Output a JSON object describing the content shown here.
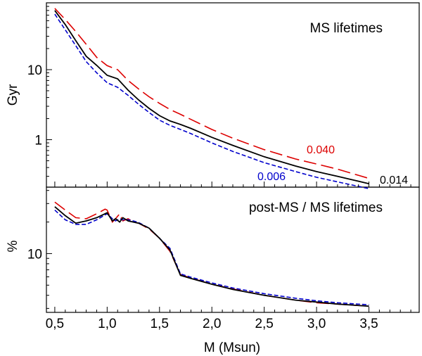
{
  "chart_data": [
    {
      "type": "line",
      "title": "MS lifetimes",
      "xlabel": "M (Msun)",
      "ylabel": "Gyr",
      "xlim": [
        0.42,
        3.98
      ],
      "ylim": [
        0.21,
        90
      ],
      "yscale": "log",
      "y_ticks": [
        1,
        10
      ],
      "y_tick_labels": [
        "1",
        "10"
      ],
      "grid": false,
      "series": [
        {
          "name": "0.040",
          "color": "#dd0000",
          "dash": "long-dash",
          "x": [
            0.5,
            0.6,
            0.7,
            0.8,
            0.9,
            1.0,
            1.1,
            1.2,
            1.3,
            1.4,
            1.5,
            1.6,
            1.7,
            1.8,
            2.0,
            2.2,
            2.5,
            2.8,
            3.0,
            3.2,
            3.5
          ],
          "y": [
            75,
            52,
            35,
            23,
            15,
            11.4,
            10,
            7.0,
            5.3,
            4.1,
            3.3,
            2.7,
            2.3,
            1.95,
            1.4,
            1.05,
            0.72,
            0.53,
            0.45,
            0.38,
            0.28
          ]
        },
        {
          "name": "0.014",
          "color": "#000000",
          "dash": "solid",
          "x": [
            0.5,
            0.6,
            0.7,
            0.8,
            0.9,
            1.0,
            1.1,
            1.2,
            1.3,
            1.4,
            1.5,
            1.6,
            1.7,
            1.8,
            2.0,
            2.2,
            2.5,
            2.8,
            3.0,
            3.2,
            3.5
          ],
          "y": [
            70,
            44,
            26,
            15.5,
            11.5,
            8.3,
            7.4,
            5.1,
            3.7,
            2.8,
            2.2,
            1.85,
            1.65,
            1.45,
            1.08,
            0.83,
            0.57,
            0.42,
            0.35,
            0.3,
            0.235
          ]
        },
        {
          "name": "0.006",
          "color": "#0000cc",
          "dash": "short-dash",
          "x": [
            0.5,
            0.6,
            0.7,
            0.8,
            0.9,
            1.0,
            1.1,
            1.2,
            1.3,
            1.4,
            1.5,
            1.6,
            1.7,
            1.8,
            2.0,
            2.2,
            2.5,
            2.8,
            3.0,
            3.2,
            3.5
          ],
          "y": [
            62,
            37,
            22,
            13,
            9.0,
            6.5,
            5.6,
            4.3,
            3.2,
            2.45,
            1.9,
            1.6,
            1.4,
            1.22,
            0.9,
            0.68,
            0.47,
            0.35,
            0.29,
            0.25,
            0.2
          ]
        }
      ]
    },
    {
      "type": "line",
      "title": "post-MS / MS lifetimes",
      "xlabel": "M (Msun)",
      "ylabel": "%",
      "xlim": [
        0.42,
        3.98
      ],
      "ylim": [
        2.75,
        43
      ],
      "yscale": "log",
      "x_ticks": [
        0.5,
        1.0,
        1.5,
        2.0,
        2.5,
        3.0,
        3.5
      ],
      "x_tick_labels": [
        "0,5",
        "1,0",
        "1,5",
        "2,0",
        "2,5",
        "3,0",
        "3,5"
      ],
      "y_ticks": [
        10
      ],
      "y_tick_labels": [
        "10"
      ],
      "grid": false,
      "series": [
        {
          "name": "0.040",
          "color": "#dd0000",
          "dash": "long-dash",
          "x": [
            0.5,
            0.6,
            0.7,
            0.8,
            0.9,
            0.98,
            1.0,
            1.05,
            1.08,
            1.12,
            1.15,
            1.2,
            1.25,
            1.3,
            1.4,
            1.5,
            1.6,
            1.7,
            1.8,
            2.0,
            2.2,
            2.5,
            2.8,
            3.0,
            3.2,
            3.5
          ],
          "y": [
            31,
            26,
            22,
            21.5,
            24,
            26.5,
            26,
            20,
            21.5,
            24,
            20.5,
            21.5,
            20,
            19.5,
            17.2,
            14,
            10.5,
            6.3,
            5.85,
            5.1,
            4.6,
            4.0,
            3.6,
            3.4,
            3.3,
            3.15
          ]
        },
        {
          "name": "0.014",
          "color": "#000000",
          "dash": "solid",
          "x": [
            0.5,
            0.6,
            0.7,
            0.8,
            0.9,
            1.0,
            1.05,
            1.08,
            1.12,
            1.15,
            1.2,
            1.25,
            1.3,
            1.4,
            1.5,
            1.6,
            1.7,
            1.8,
            2.0,
            2.2,
            2.5,
            2.8,
            3.0,
            3.2,
            3.5
          ],
          "y": [
            28,
            23,
            19.5,
            20.5,
            22,
            24.5,
            20.5,
            21.5,
            20,
            22,
            20.5,
            20,
            19.5,
            17.5,
            14,
            10.8,
            6.2,
            5.8,
            5.1,
            4.55,
            4.0,
            3.6,
            3.45,
            3.3,
            3.15
          ]
        },
        {
          "name": "0.006",
          "color": "#0000cc",
          "dash": "short-dash",
          "x": [
            0.5,
            0.6,
            0.7,
            0.8,
            0.9,
            1.0,
            1.05,
            1.08,
            1.12,
            1.15,
            1.2,
            1.25,
            1.3,
            1.4,
            1.5,
            1.6,
            1.7,
            1.8,
            2.0,
            2.2,
            2.5,
            2.8,
            3.0,
            3.2,
            3.5
          ],
          "y": [
            26,
            21,
            19,
            19,
            21,
            24,
            21.5,
            20.5,
            21.5,
            21,
            21,
            20.5,
            19.8,
            17.5,
            14,
            11.2,
            6.4,
            5.95,
            5.25,
            4.7,
            4.15,
            3.75,
            3.55,
            3.4,
            3.25
          ]
        }
      ]
    }
  ],
  "figure": {
    "top_title": "MS lifetimes",
    "bottom_title": "post-MS / MS lifetimes",
    "top_ylabel": "Gyr",
    "bottom_ylabel": "%",
    "xlabel": "M (Msun)",
    "label_red": "0.040",
    "label_black": "0.014",
    "label_blue": "0.006"
  }
}
